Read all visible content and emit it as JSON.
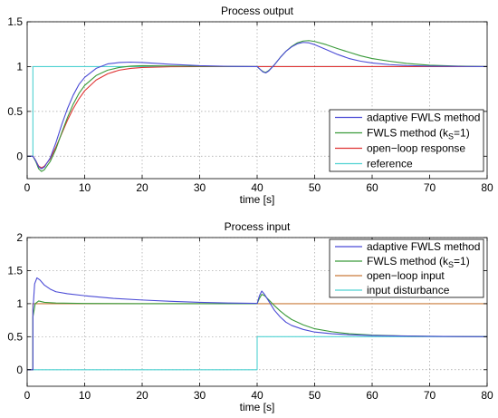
{
  "chart_data": [
    {
      "type": "line",
      "title": "Process output",
      "xlabel": "time [s]",
      "ylabel": "",
      "xlim": [
        0,
        80
      ],
      "ylim": [
        -0.25,
        1.5
      ],
      "x_ticks": [
        "0",
        "10",
        "20",
        "30",
        "40",
        "50",
        "60",
        "70",
        "80"
      ],
      "x_tick_values": [
        0,
        10,
        20,
        30,
        40,
        50,
        60,
        70,
        80
      ],
      "y_ticks": [
        "0",
        "0.5",
        "1",
        "1.5"
      ],
      "y_tick_values": [
        0,
        0.5,
        1,
        1.5
      ],
      "grid": true,
      "legend_position": "lower-right",
      "series": [
        {
          "name": "adaptive FWLS method",
          "color": "#4b4bd6",
          "points": [
            [
              0,
              0
            ],
            [
              1,
              0
            ],
            [
              1.5,
              -0.05
            ],
            [
              2,
              -0.12
            ],
            [
              2.5,
              -0.14
            ],
            [
              3,
              -0.12
            ],
            [
              4,
              -0.02
            ],
            [
              5,
              0.15
            ],
            [
              6,
              0.35
            ],
            [
              7,
              0.53
            ],
            [
              8,
              0.68
            ],
            [
              9,
              0.8
            ],
            [
              10,
              0.88
            ],
            [
              12,
              0.98
            ],
            [
              14,
              1.03
            ],
            [
              16,
              1.045
            ],
            [
              18,
              1.05
            ],
            [
              20,
              1.045
            ],
            [
              25,
              1.025
            ],
            [
              30,
              1.01
            ],
            [
              35,
              1.003
            ],
            [
              39.8,
              1.0
            ],
            [
              40,
              1.0
            ],
            [
              40.5,
              0.97
            ],
            [
              41,
              0.94
            ],
            [
              41.5,
              0.93
            ],
            [
              42,
              0.95
            ],
            [
              43,
              1.02
            ],
            [
              44,
              1.1
            ],
            [
              45,
              1.17
            ],
            [
              46,
              1.22
            ],
            [
              47,
              1.255
            ],
            [
              48,
              1.27
            ],
            [
              49,
              1.265
            ],
            [
              50,
              1.245
            ],
            [
              52,
              1.19
            ],
            [
              54,
              1.135
            ],
            [
              56,
              1.09
            ],
            [
              58,
              1.06
            ],
            [
              60,
              1.04
            ],
            [
              63,
              1.022
            ],
            [
              66,
              1.012
            ],
            [
              70,
              1.005
            ],
            [
              75,
              1.002
            ],
            [
              80,
              1.0
            ]
          ]
        },
        {
          "name": "FWLS method (k",
          "name_sub": "S",
          "name_end": "=1)",
          "color": "#3a9a3a",
          "points": [
            [
              0,
              0
            ],
            [
              1,
              0
            ],
            [
              1.5,
              -0.06
            ],
            [
              2,
              -0.14
            ],
            [
              2.5,
              -0.17
            ],
            [
              3,
              -0.15
            ],
            [
              4,
              -0.06
            ],
            [
              5,
              0.08
            ],
            [
              6,
              0.26
            ],
            [
              7,
              0.43
            ],
            [
              8,
              0.58
            ],
            [
              9,
              0.7
            ],
            [
              10,
              0.79
            ],
            [
              12,
              0.9
            ],
            [
              14,
              0.96
            ],
            [
              16,
              0.99
            ],
            [
              18,
              1.005
            ],
            [
              20,
              1.01
            ],
            [
              25,
              1.007
            ],
            [
              30,
              1.003
            ],
            [
              35,
              1.001
            ],
            [
              39.8,
              1.0
            ],
            [
              40,
              1.0
            ],
            [
              40.5,
              0.97
            ],
            [
              41,
              0.945
            ],
            [
              41.5,
              0.935
            ],
            [
              42,
              0.955
            ],
            [
              43,
              1.02
            ],
            [
              44,
              1.1
            ],
            [
              45,
              1.17
            ],
            [
              46,
              1.225
            ],
            [
              47,
              1.265
            ],
            [
              48,
              1.285
            ],
            [
              49,
              1.29
            ],
            [
              50,
              1.28
            ],
            [
              52,
              1.245
            ],
            [
              54,
              1.2
            ],
            [
              56,
              1.16
            ],
            [
              58,
              1.12
            ],
            [
              60,
              1.09
            ],
            [
              63,
              1.06
            ],
            [
              66,
              1.035
            ],
            [
              70,
              1.015
            ],
            [
              75,
              1.005
            ],
            [
              80,
              1.0
            ]
          ]
        },
        {
          "name": "open−loop response",
          "color": "#e03333",
          "points": [
            [
              0,
              0
            ],
            [
              1,
              0
            ],
            [
              1.5,
              -0.05
            ],
            [
              2,
              -0.11
            ],
            [
              2.5,
              -0.13
            ],
            [
              3,
              -0.11
            ],
            [
              4,
              -0.03
            ],
            [
              5,
              0.1
            ],
            [
              6,
              0.25
            ],
            [
              7,
              0.4
            ],
            [
              8,
              0.53
            ],
            [
              9,
              0.64
            ],
            [
              10,
              0.73
            ],
            [
              12,
              0.85
            ],
            [
              14,
              0.92
            ],
            [
              16,
              0.96
            ],
            [
              18,
              0.98
            ],
            [
              20,
              0.99
            ],
            [
              25,
              0.998
            ],
            [
              30,
              1.0
            ],
            [
              40,
              1.0
            ],
            [
              50,
              1.0
            ],
            [
              60,
              1.0
            ],
            [
              70,
              1.0
            ],
            [
              80,
              1.0
            ]
          ]
        },
        {
          "name": "reference",
          "color": "#4fd2d2",
          "points": [
            [
              0,
              0
            ],
            [
              1,
              0
            ],
            [
              1,
              1
            ],
            [
              80,
              1
            ]
          ]
        }
      ]
    },
    {
      "type": "line",
      "title": "Process input",
      "xlabel": "time [s]",
      "ylabel": "",
      "xlim": [
        0,
        80
      ],
      "ylim": [
        -0.25,
        2
      ],
      "x_ticks": [
        "0",
        "10",
        "20",
        "30",
        "40",
        "50",
        "60",
        "70",
        "80"
      ],
      "x_tick_values": [
        0,
        10,
        20,
        30,
        40,
        50,
        60,
        70,
        80
      ],
      "y_ticks": [
        "0",
        "0.5",
        "1",
        "1.5",
        "2"
      ],
      "y_tick_values": [
        0,
        0.5,
        1,
        1.5,
        2
      ],
      "grid": true,
      "legend_position": "upper-right",
      "series": [
        {
          "name": "adaptive FWLS method",
          "color": "#4b4bd6",
          "points": [
            [
              0,
              0
            ],
            [
              1,
              0
            ],
            [
              1,
              0.9
            ],
            [
              1.3,
              1.3
            ],
            [
              1.7,
              1.39
            ],
            [
              2.2,
              1.36
            ],
            [
              3,
              1.28
            ],
            [
              4,
              1.22
            ],
            [
              5,
              1.18
            ],
            [
              7,
              1.15
            ],
            [
              10,
              1.12
            ],
            [
              15,
              1.08
            ],
            [
              20,
              1.055
            ],
            [
              25,
              1.035
            ],
            [
              30,
              1.02
            ],
            [
              35,
              1.01
            ],
            [
              39.8,
              1.005
            ],
            [
              40,
              1.0
            ],
            [
              40.4,
              1.12
            ],
            [
              40.8,
              1.19
            ],
            [
              41.2,
              1.15
            ],
            [
              42,
              1.04
            ],
            [
              43,
              0.9
            ],
            [
              44,
              0.8
            ],
            [
              45,
              0.72
            ],
            [
              46,
              0.67
            ],
            [
              48,
              0.61
            ],
            [
              50,
              0.57
            ],
            [
              53,
              0.545
            ],
            [
              56,
              0.53
            ],
            [
              60,
              0.518
            ],
            [
              65,
              0.51
            ],
            [
              70,
              0.505
            ],
            [
              75,
              0.502
            ],
            [
              80,
              0.5
            ]
          ]
        },
        {
          "name": "FWLS method (k",
          "name_sub": "S",
          "name_end": "=1)",
          "color": "#3a9a3a",
          "points": [
            [
              0,
              0
            ],
            [
              1,
              0
            ],
            [
              1,
              0.8
            ],
            [
              1.4,
              1.0
            ],
            [
              2,
              1.04
            ],
            [
              3,
              1.02
            ],
            [
              5,
              1.01
            ],
            [
              10,
              1.003
            ],
            [
              20,
              1.0
            ],
            [
              39.8,
              1.0
            ],
            [
              40,
              1.0
            ],
            [
              40.4,
              1.08
            ],
            [
              40.8,
              1.14
            ],
            [
              41.3,
              1.12
            ],
            [
              42,
              1.06
            ],
            [
              43,
              0.97
            ],
            [
              44,
              0.89
            ],
            [
              45,
              0.82
            ],
            [
              46,
              0.76
            ],
            [
              48,
              0.68
            ],
            [
              50,
              0.62
            ],
            [
              53,
              0.575
            ],
            [
              56,
              0.545
            ],
            [
              60,
              0.525
            ],
            [
              65,
              0.512
            ],
            [
              70,
              0.506
            ],
            [
              75,
              0.502
            ],
            [
              80,
              0.5
            ]
          ]
        },
        {
          "name": "open−loop input",
          "color": "#c97a3a",
          "points": [
            [
              0,
              0
            ],
            [
              1,
              0
            ],
            [
              1,
              1
            ],
            [
              80,
              1
            ]
          ]
        },
        {
          "name": "input disturbance",
          "color": "#4fd2d2",
          "points": [
            [
              0,
              0
            ],
            [
              40,
              0
            ],
            [
              40,
              0.5
            ],
            [
              80,
              0.5
            ]
          ]
        }
      ]
    }
  ]
}
